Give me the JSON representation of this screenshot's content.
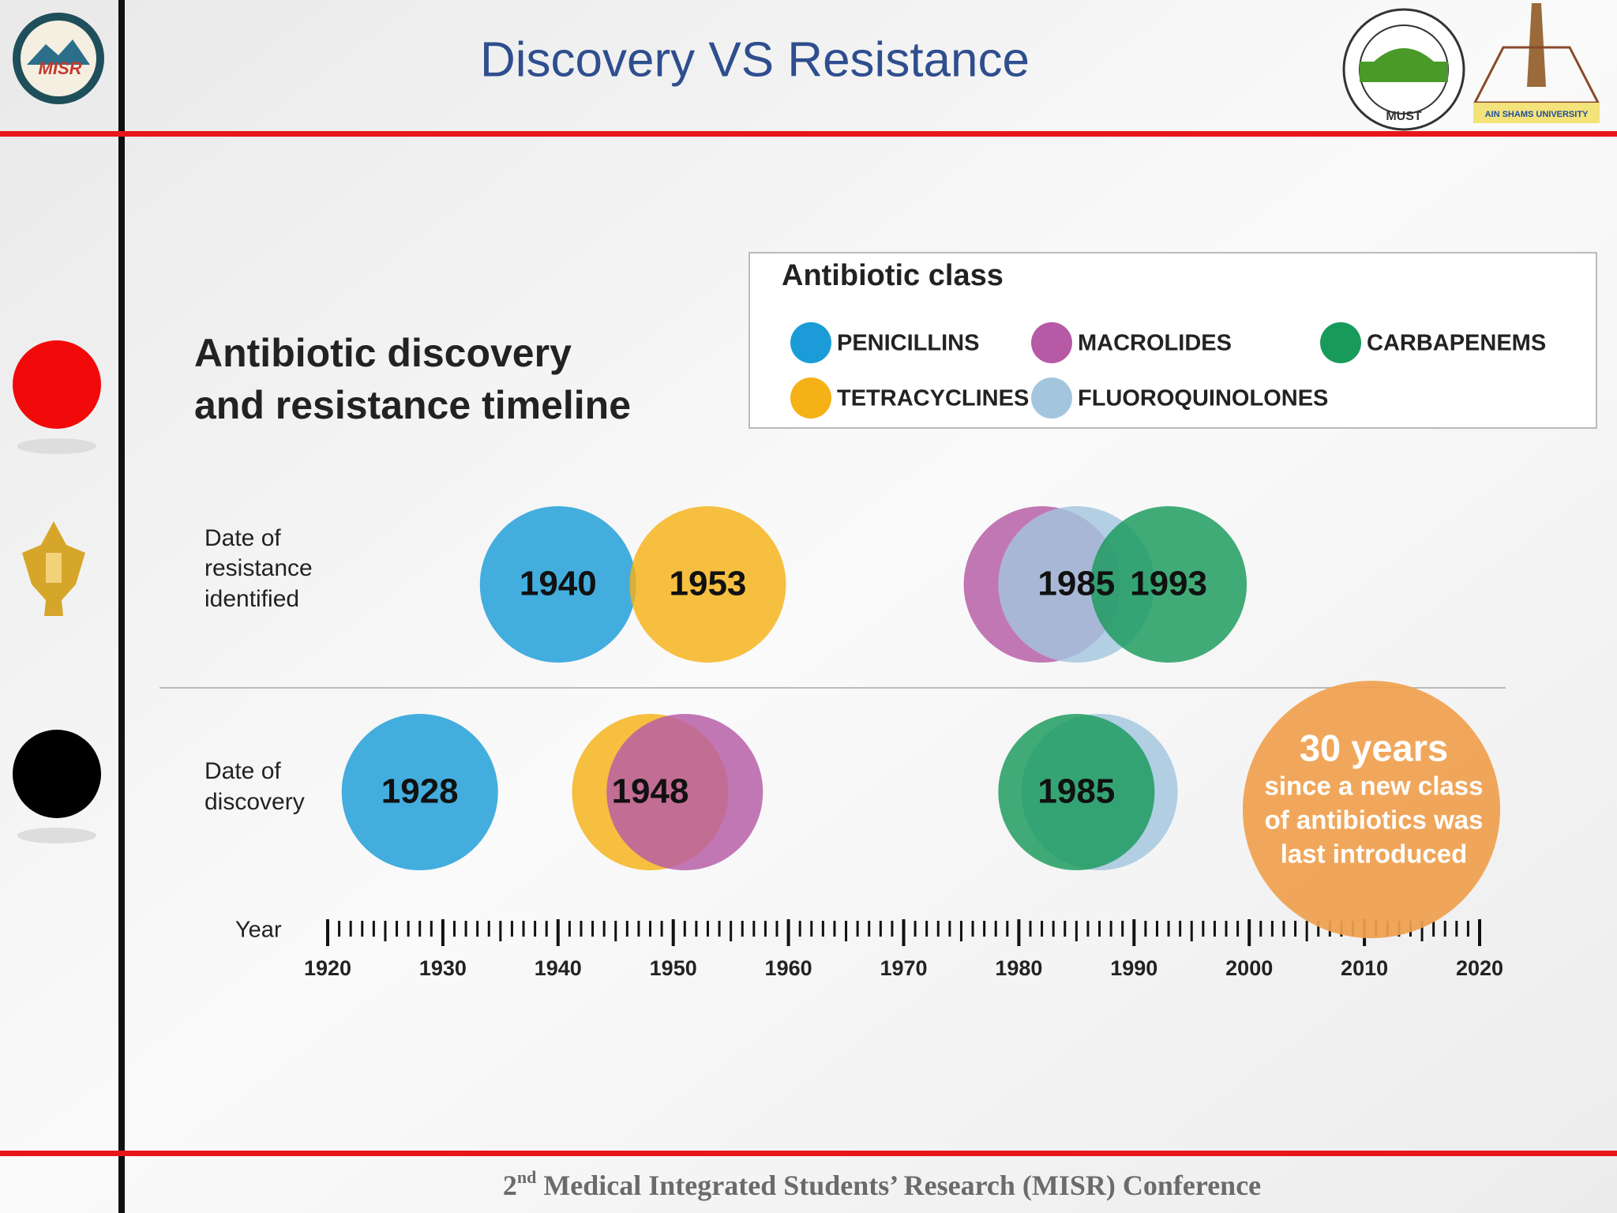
{
  "header": {
    "title": "Discovery VS Resistance",
    "logos": [
      "MISR",
      "MUST",
      "AIN SHAMS UNIVERSITY"
    ]
  },
  "footer": {
    "number": "2",
    "ordinal": "nd",
    "text": " Medical Integrated Students’ Research (MISR) Conference"
  },
  "chart_data": {
    "type": "timeline",
    "title": [
      "Antibiotic discovery",
      "and resistance timeline"
    ],
    "legend_title": "Antibiotic class",
    "rows": [
      {
        "key": "resistance",
        "label": [
          "Date of",
          "resistance",
          "identified"
        ]
      },
      {
        "key": "discovery",
        "label": [
          "Date of",
          "discovery"
        ]
      }
    ],
    "series": [
      {
        "name": "PENICILLINS",
        "color": "#1b9cd8",
        "discovery": 1928,
        "resistance": 1940,
        "discovery_label": "1928",
        "resistance_label": "1940"
      },
      {
        "name": "TETRACYCLINES",
        "color": "#f5b216",
        "discovery": 1948,
        "resistance": 1953,
        "discovery_label": "1948",
        "resistance_label": "1953"
      },
      {
        "name": "MACROLIDES",
        "color": "#b65aa6",
        "discovery": 1951,
        "resistance": 1982,
        "discovery_label": null,
        "resistance_label": null
      },
      {
        "name": "FLUOROQUINOLONES",
        "color": "#a3c6de",
        "discovery": 1987,
        "resistance": 1985,
        "discovery_label": null,
        "resistance_label": "1985"
      },
      {
        "name": "CARBAPENEMS",
        "color": "#189a5b",
        "discovery": 1985,
        "resistance": 1993,
        "discovery_label": "1985",
        "resistance_label": "1993"
      }
    ],
    "x_label": "Year",
    "xlim": [
      1920,
      2020
    ],
    "xticks": [
      1920,
      1930,
      1940,
      1950,
      1960,
      1970,
      1980,
      1990,
      2000,
      2010,
      2020
    ],
    "annotation": {
      "title": "30 years",
      "lines": [
        "since a new class",
        "of antibiotics was",
        "last introduced"
      ],
      "color": "#f0a04f"
    }
  }
}
